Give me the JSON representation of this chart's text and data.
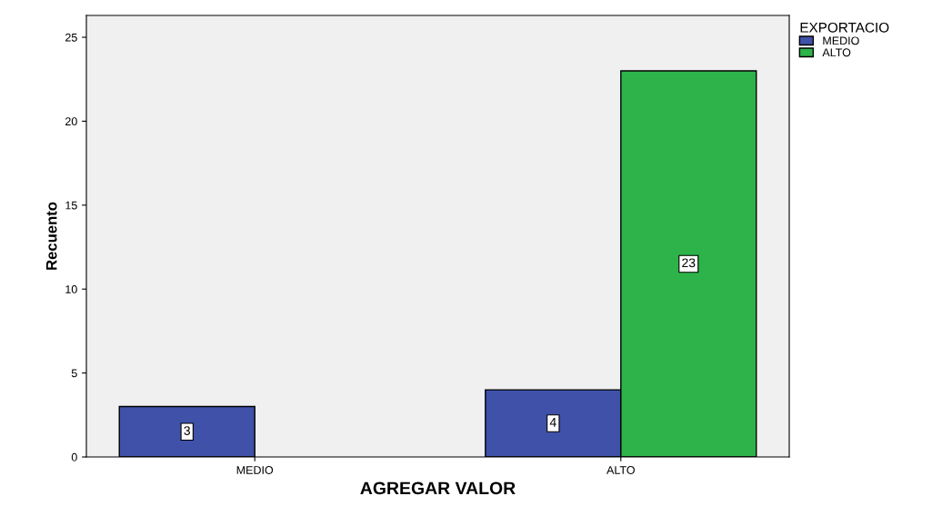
{
  "chart_data": {
    "type": "bar",
    "xlabel": "AGREGAR VALOR",
    "ylabel": "Recuento",
    "legend_title": "EXPORTACIO",
    "categories": [
      "MEDIO",
      "ALTO"
    ],
    "series": [
      {
        "name": "MEDIO",
        "color": "#3f51a8",
        "values": [
          3,
          4
        ]
      },
      {
        "name": "ALTO",
        "color": "#2db34a",
        "values": [
          null,
          23
        ]
      }
    ],
    "ylim": [
      0,
      26.3
    ],
    "yticks": [
      0,
      5,
      10,
      15,
      20,
      25
    ],
    "data_labels": true,
    "grid": false,
    "legend": "top right"
  }
}
